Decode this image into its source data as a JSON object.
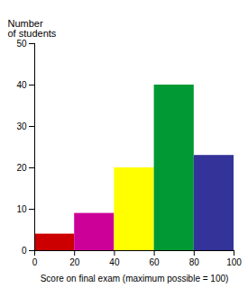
{
  "chart_data": {
    "type": "histogram",
    "bins": [
      0,
      20,
      40,
      60,
      80,
      100
    ],
    "values": [
      4,
      9,
      20,
      40,
      23
    ],
    "colors": [
      "#cc0000",
      "#cc0099",
      "#ffff00",
      "#009933",
      "#333399"
    ],
    "xlabel": "Score on final exam (maximum possible = 100)",
    "ylabel": "Number\nof students",
    "xlim": [
      0,
      100
    ],
    "ylim": [
      0,
      50
    ],
    "xticks": [
      0,
      20,
      40,
      60,
      80,
      100
    ],
    "yticks": [
      0,
      10,
      20,
      30,
      40,
      50
    ]
  }
}
